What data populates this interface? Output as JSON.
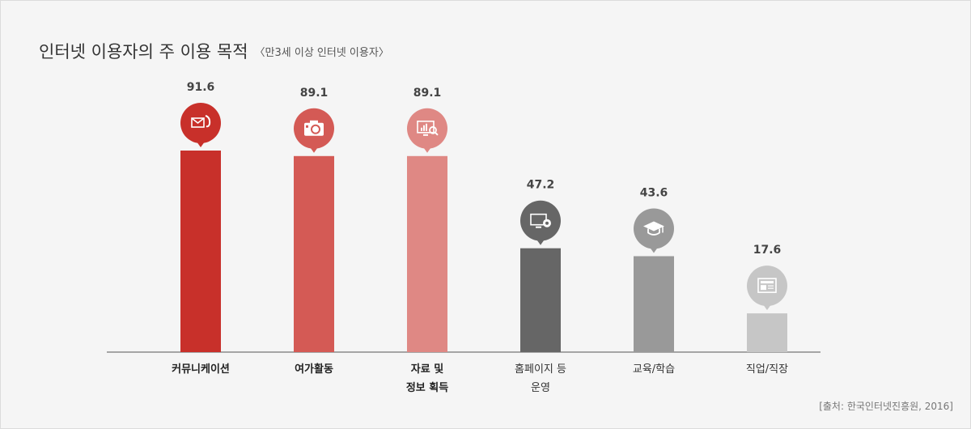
{
  "title": "인터넷 이용자의 주 이용 목적",
  "subtitle": "〈만3세 이상 인터넷 이용자〉",
  "source": "[출처: 한국인터넷진흥원, 2016]",
  "chart_data": {
    "type": "bar",
    "title": "인터넷 이용자의 주 이용 목적",
    "subtitle": "〈만3세 이상 인터넷 이용자〉",
    "ylim": [
      0,
      100
    ],
    "grid": false,
    "categories": [
      [
        "커뮤니케이션"
      ],
      [
        "여가활동"
      ],
      [
        "자료 및",
        "정보 획득"
      ],
      [
        "홈페이지 등",
        "운영"
      ],
      [
        "교육/학습"
      ],
      [
        "직업/직장"
      ]
    ],
    "values": [
      91.6,
      89.1,
      89.1,
      47.2,
      43.6,
      17.6
    ],
    "value_labels": [
      "91.6",
      "89.1",
      "89.1",
      "47.2",
      "43.6",
      "17.6"
    ],
    "bold_labels": [
      true,
      true,
      true,
      false,
      false,
      false
    ],
    "colors": [
      "#c8302a",
      "#d45a55",
      "#df8884",
      "#666666",
      "#999999",
      "#c6c6c6"
    ],
    "icons": [
      "mail-phone-icon",
      "camera-icon",
      "monitor-chart-search-icon",
      "monitor-gear-icon",
      "graduation-cap-icon",
      "newspaper-icon"
    ]
  }
}
